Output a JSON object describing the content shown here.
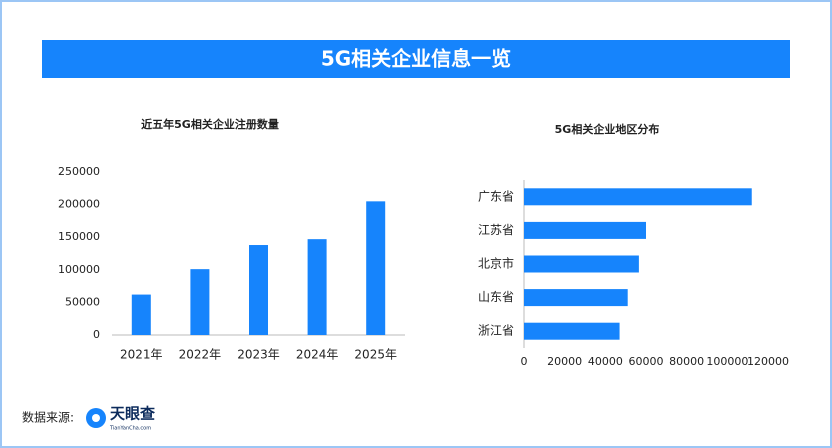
{
  "title": "5G相关企业信息一览",
  "source": {
    "label": "数据来源:",
    "brand": "天眼查",
    "brand_sub": "TianYanCha.com"
  },
  "chart_data": [
    {
      "type": "bar",
      "title": "近五年5G相关企业注册数量",
      "categories": [
        "2021年",
        "2022年",
        "2023年",
        "2024年",
        "2025年"
      ],
      "values": [
        62000,
        101000,
        138000,
        147000,
        205000
      ],
      "color": "#1684fc",
      "ylim": [
        0,
        250000
      ],
      "yticks": [
        0,
        50000,
        100000,
        150000,
        200000,
        250000
      ],
      "grid": false
    },
    {
      "type": "hbar",
      "title": "5G相关企业地区分布",
      "categories": [
        "广东省",
        "江苏省",
        "北京市",
        "山东省",
        "浙江省"
      ],
      "values": [
        112000,
        60000,
        56500,
        51000,
        47000
      ],
      "color": "#1684fc",
      "xlim": [
        0,
        120000
      ],
      "xticks": [
        0,
        20000,
        40000,
        60000,
        80000,
        100000,
        120000
      ],
      "grid": false
    }
  ]
}
